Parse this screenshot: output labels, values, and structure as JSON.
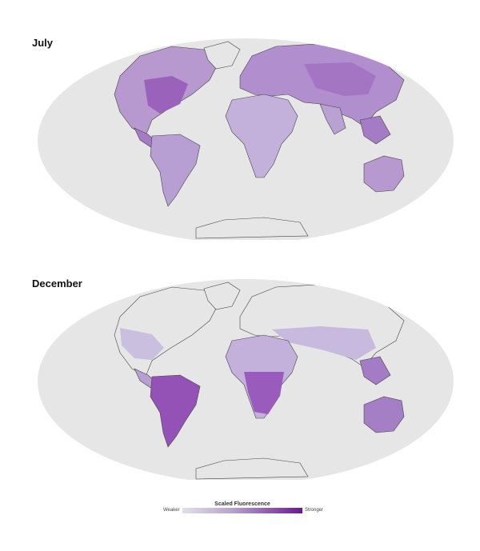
{
  "panels": [
    {
      "id": "july",
      "label": "July"
    },
    {
      "id": "december",
      "label": "December"
    }
  ],
  "legend": {
    "title": "Scaled Fluorescence",
    "low_label": "Weaker",
    "high_label": "Stronger",
    "color_low": "#e2dfe8",
    "color_high": "#6d1691"
  },
  "colors": {
    "ocean": "#e6e6e6",
    "coastline": "#444444"
  }
}
